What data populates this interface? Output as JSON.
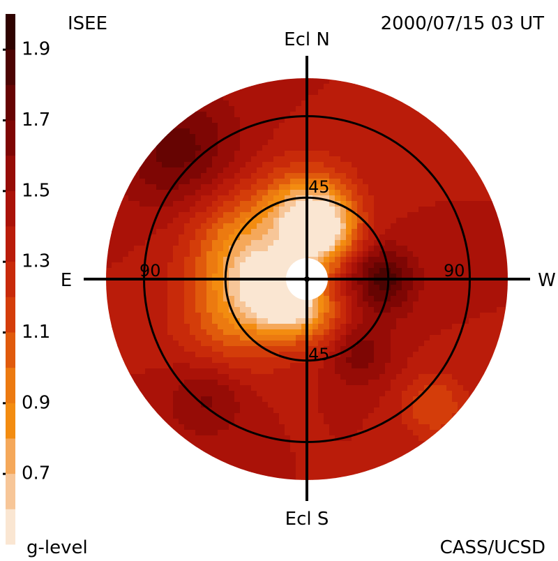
{
  "header": {
    "left_label": "ISEE",
    "timestamp": "2000/07/15 03 UT"
  },
  "footer": {
    "left_label": "g-level",
    "credit": "CASS/UCSD"
  },
  "chart_data": {
    "type": "heatmap",
    "projection": "polar sky map (fisheye), Sun at center",
    "title": "",
    "axis_labels": {
      "north": "Ecl N",
      "south": "Ecl S",
      "east": "E",
      "west": "W"
    },
    "circle_labels": {
      "inner_top": "45",
      "inner_bottom": "45",
      "outer_left": "90",
      "outer_right": "90"
    },
    "elongation_circles_deg": [
      45,
      90
    ],
    "outer_edge_elongation_deg": 111,
    "occulted_center": true,
    "colorbar": {
      "label": "g-level",
      "range": [
        0.5,
        2.0
      ],
      "tick_values": [
        0.7,
        0.9,
        1.1,
        1.3,
        1.5,
        1.7,
        1.9
      ],
      "tick_labels": [
        "0.7",
        "0.9",
        "1.1",
        "1.3",
        "1.5",
        "1.7",
        "1.9"
      ],
      "levels": [
        {
          "min": 0.5,
          "max": 0.6,
          "color": "#fae6d2"
        },
        {
          "min": 0.6,
          "max": 0.7,
          "color": "#f7c698"
        },
        {
          "min": 0.7,
          "max": 0.8,
          "color": "#f5a85a"
        },
        {
          "min": 0.8,
          "max": 0.9,
          "color": "#f38c10"
        },
        {
          "min": 0.9,
          "max": 1.0,
          "color": "#ec7a10"
        },
        {
          "min": 1.0,
          "max": 1.1,
          "color": "#e05a0c"
        },
        {
          "min": 1.1,
          "max": 1.2,
          "color": "#d43d0a"
        },
        {
          "min": 1.2,
          "max": 1.3,
          "color": "#c82a0a"
        },
        {
          "min": 1.3,
          "max": 1.4,
          "color": "#ba1c0a"
        },
        {
          "min": 1.4,
          "max": 1.5,
          "color": "#aa1208"
        },
        {
          "min": 1.5,
          "max": 1.6,
          "color": "#960c06"
        },
        {
          "min": 1.6,
          "max": 1.7,
          "color": "#7e0604"
        },
        {
          "min": 1.7,
          "max": 1.8,
          "color": "#660402"
        },
        {
          "min": 1.8,
          "max": 1.9,
          "color": "#4c0402"
        },
        {
          "min": 1.9,
          "max": 2.0,
          "color": "#2e0200"
        }
      ]
    },
    "features": [
      {
        "pa_deg": 345,
        "elong_deg": 28,
        "sigma_deg": 14,
        "level": 0.65,
        "note": "bright narrow structure north of Sun"
      },
      {
        "pa_deg": 0,
        "elong_deg": 40,
        "sigma_deg": 18,
        "level": 0.95
      },
      {
        "pa_deg": 60,
        "elong_deg": 42,
        "sigma_deg": 22,
        "level": 0.95
      },
      {
        "pa_deg": 100,
        "elong_deg": 22,
        "sigma_deg": 16,
        "level": 0.85
      },
      {
        "pa_deg": 140,
        "elong_deg": 15,
        "sigma_deg": 11,
        "level": 0.75
      },
      {
        "pa_deg": 120,
        "elong_deg": 48,
        "sigma_deg": 22,
        "level": 1.05
      },
      {
        "pa_deg": 200,
        "elong_deg": 25,
        "sigma_deg": 14,
        "level": 1.1
      },
      {
        "pa_deg": 270,
        "elong_deg": 42,
        "sigma_deg": 13,
        "level": 1.85,
        "note": "dark compact region west of Sun"
      },
      {
        "pa_deg": 215,
        "elong_deg": 48,
        "sigma_deg": 13,
        "level": 1.7
      },
      {
        "pa_deg": 45,
        "elong_deg": 100,
        "sigma_deg": 24,
        "level": 1.75,
        "note": "dark band near north-east edge"
      },
      {
        "pa_deg": 140,
        "elong_deg": 85,
        "sigma_deg": 16,
        "level": 1.65
      },
      {
        "pa_deg": 225,
        "elong_deg": 100,
        "sigma_deg": 13,
        "level": 1.1,
        "note": "small bright patch near south-west edge"
      }
    ],
    "background_level": 1.4
  }
}
